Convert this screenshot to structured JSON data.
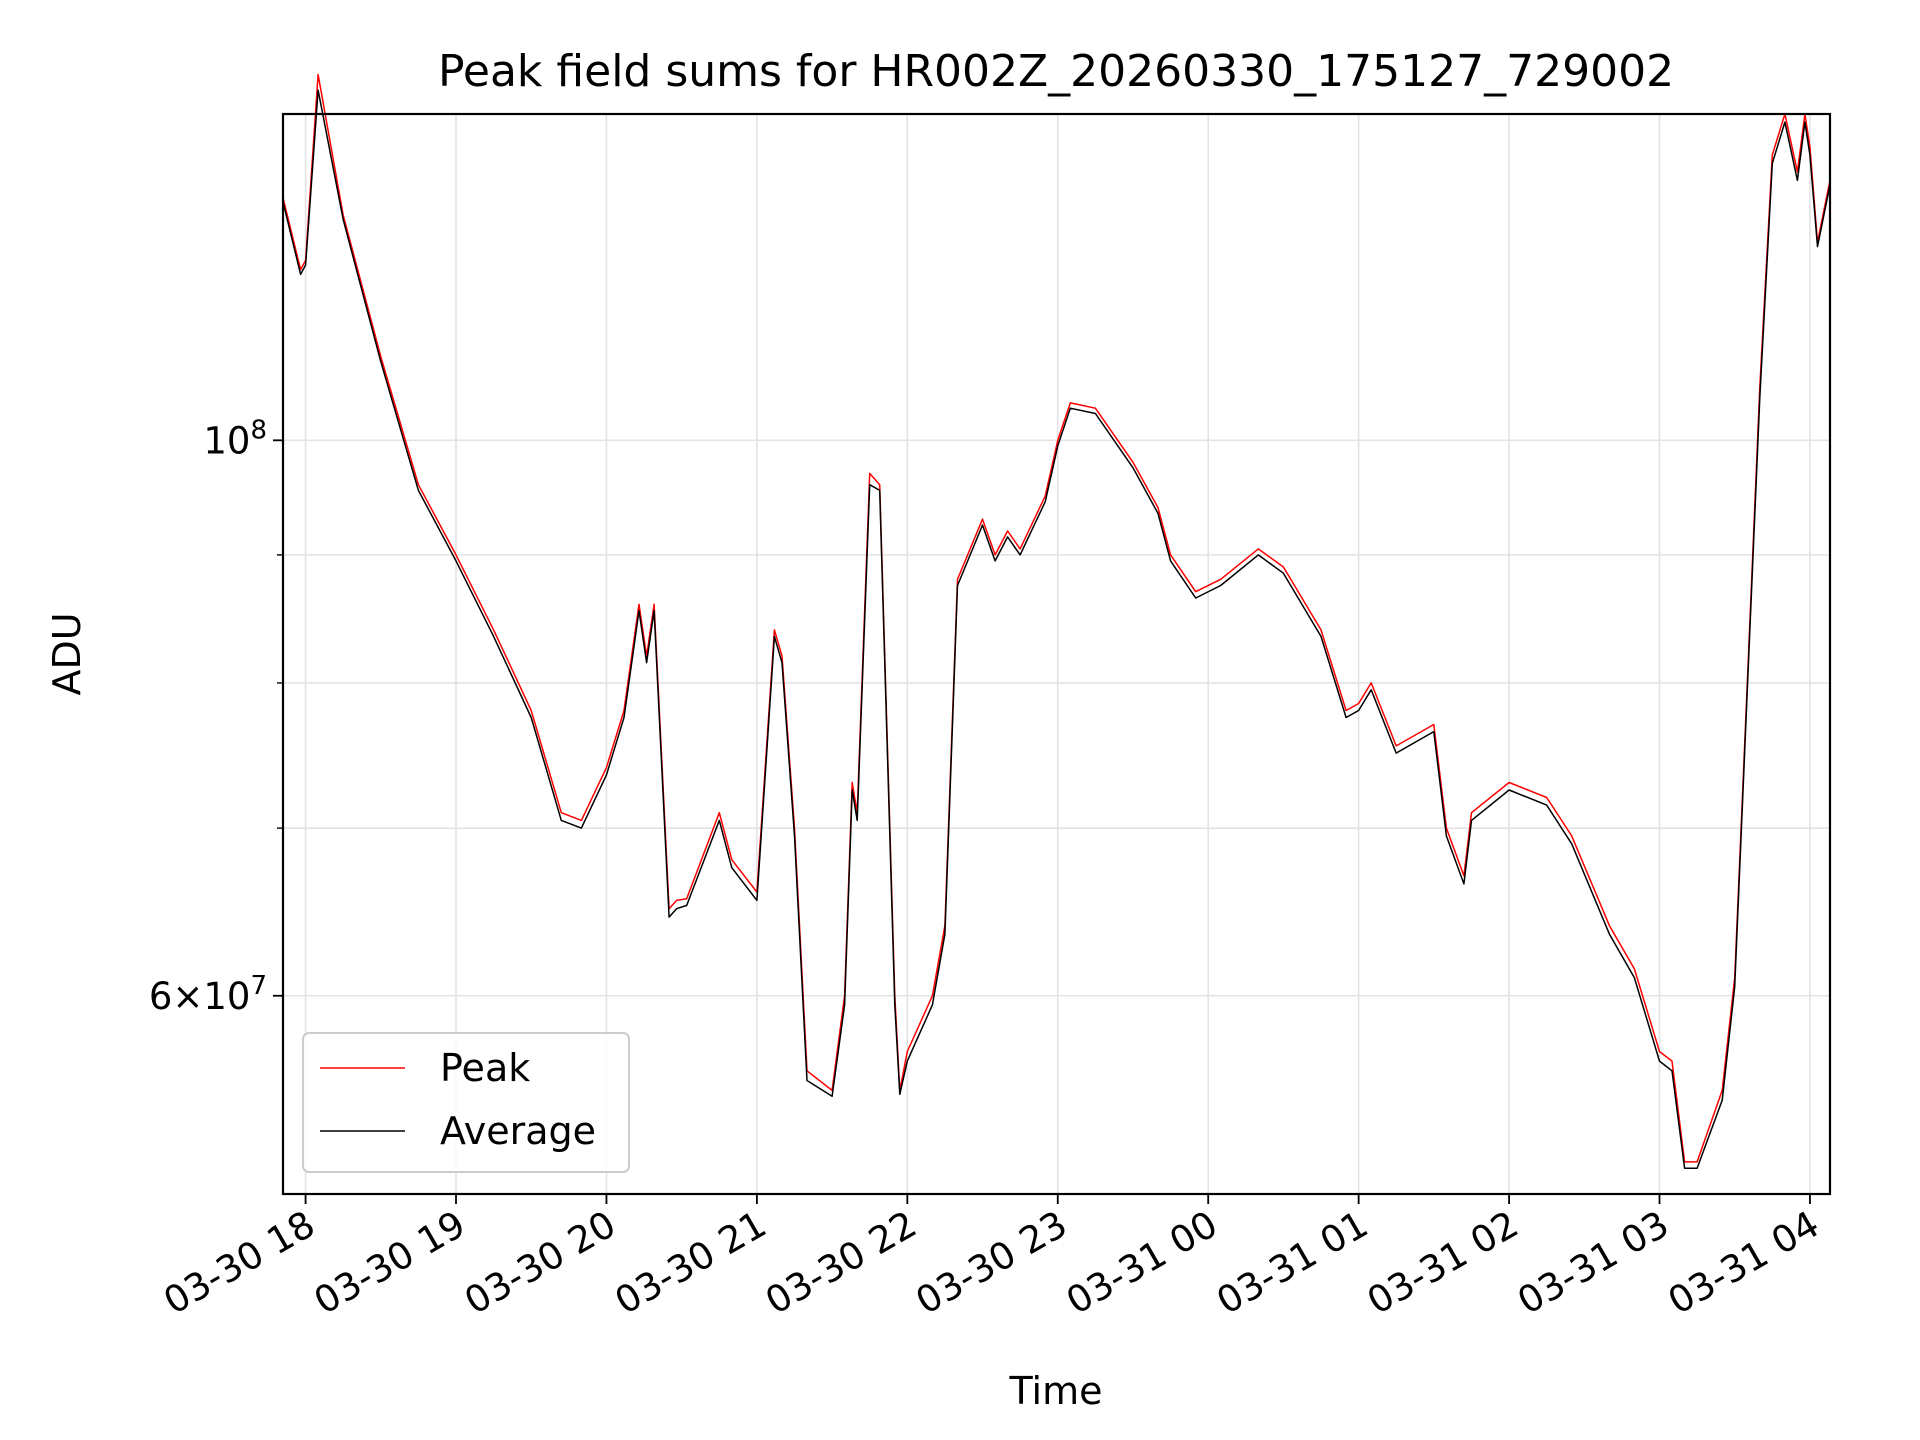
{
  "chart_data": {
    "type": "line",
    "title": "Peak field sums for HR002Z_20260330_175127_729002",
    "xlabel": "Time",
    "ylabel": "ADU",
    "yscale": "log",
    "xlim": [
      "2026-03-30 17:51",
      "2026-03-31 04:08"
    ],
    "ylim": [
      50000000,
      135000000
    ],
    "grid": true,
    "legend_placement": "lower-left",
    "x_tick_labels": [
      "03-30 18",
      "03-30 19",
      "03-30 20",
      "03-30 21",
      "03-30 22",
      "03-30 23",
      "03-31 00",
      "03-31 01",
      "03-31 02",
      "03-31 03",
      "03-31 04"
    ],
    "y_tick_labels": [
      {
        "value": 100000000,
        "base": "10",
        "exponent": "8"
      },
      {
        "value": 60000000,
        "mantissa": "6",
        "times": "×",
        "base": "10",
        "exponent": "7"
      }
    ],
    "series": [
      {
        "name": "Peak",
        "color": "#ff0000",
        "x": [
          "2026-03-30 17:51",
          "2026-03-30 17:58",
          "2026-03-30 18:00",
          "2026-03-30 18:05",
          "2026-03-30 18:15",
          "2026-03-30 18:30",
          "2026-03-30 18:45",
          "2026-03-30 19:00",
          "2026-03-30 19:15",
          "2026-03-30 19:30",
          "2026-03-30 19:42",
          "2026-03-30 19:50",
          "2026-03-30 20:00",
          "2026-03-30 20:07",
          "2026-03-30 20:13",
          "2026-03-30 20:16",
          "2026-03-30 20:19",
          "2026-03-30 20:25",
          "2026-03-30 20:28",
          "2026-03-30 20:32",
          "2026-03-30 20:45",
          "2026-03-30 20:50",
          "2026-03-30 21:00",
          "2026-03-30 21:07",
          "2026-03-30 21:10",
          "2026-03-30 21:15",
          "2026-03-30 21:20",
          "2026-03-30 21:30",
          "2026-03-30 21:35",
          "2026-03-30 21:38",
          "2026-03-30 21:40",
          "2026-03-30 21:45",
          "2026-03-30 21:49",
          "2026-03-30 21:55",
          "2026-03-30 21:57",
          "2026-03-30 22:00",
          "2026-03-30 22:10",
          "2026-03-30 22:15",
          "2026-03-30 22:20",
          "2026-03-30 22:30",
          "2026-03-30 22:35",
          "2026-03-30 22:40",
          "2026-03-30 22:45",
          "2026-03-30 22:55",
          "2026-03-30 23:00",
          "2026-03-30 23:05",
          "2026-03-30 23:15",
          "2026-03-30 23:30",
          "2026-03-30 23:40",
          "2026-03-30 23:45",
          "2026-03-30 23:55",
          "2026-03-31 00:05",
          "2026-03-31 00:20",
          "2026-03-31 00:30",
          "2026-03-31 00:45",
          "2026-03-31 00:55",
          "2026-03-31 01:00",
          "2026-03-31 01:05",
          "2026-03-31 01:15",
          "2026-03-31 01:30",
          "2026-03-31 01:35",
          "2026-03-31 01:42",
          "2026-03-31 01:45",
          "2026-03-31 02:00",
          "2026-03-31 02:15",
          "2026-03-31 02:25",
          "2026-03-31 02:40",
          "2026-03-31 02:50",
          "2026-03-31 03:00",
          "2026-03-31 03:05",
          "2026-03-31 03:10",
          "2026-03-31 03:15",
          "2026-03-31 03:25",
          "2026-03-31 03:30",
          "2026-03-31 03:35",
          "2026-03-31 03:40",
          "2026-03-31 03:45",
          "2026-03-31 03:50",
          "2026-03-31 03:55",
          "2026-03-31 03:58",
          "2026-03-31 04:00",
          "2026-03-31 04:03",
          "2026-03-31 04:08"
        ],
        "y": [
          125000000,
          117000000,
          118000000,
          140000000,
          123000000,
          108000000,
          96000000,
          90000000,
          84000000,
          78000000,
          71000000,
          70500000,
          74000000,
          78000000,
          86000000,
          82000000,
          86000000,
          65000000,
          65500000,
          65600000,
          71000000,
          68000000,
          66000000,
          84000000,
          82000000,
          70000000,
          56000000,
          55000000,
          60000000,
          73000000,
          71000000,
          97000000,
          96000000,
          60000000,
          55000000,
          57000000,
          60000000,
          64000000,
          88000000,
          93000000,
          90000000,
          92000000,
          90500000,
          95000000,
          100000000,
          103500000,
          103000000,
          98000000,
          94000000,
          90000000,
          87000000,
          88000000,
          90500000,
          89000000,
          84000000,
          78000000,
          78500000,
          80000000,
          75500000,
          77000000,
          70000000,
          67000000,
          71000000,
          73000000,
          72000000,
          69500000,
          64000000,
          61500000,
          57000000,
          56500000,
          51500000,
          51500000,
          55000000,
          61000000,
          80000000,
          105000000,
          130000000,
          135000000,
          128000000,
          135000000,
          131000000,
          120000000,
          127000000
        ]
      },
      {
        "name": "Average",
        "color": "#000000",
        "x": [
          "2026-03-30 17:51",
          "2026-03-30 17:58",
          "2026-03-30 18:00",
          "2026-03-30 18:05",
          "2026-03-30 18:15",
          "2026-03-30 18:30",
          "2026-03-30 18:45",
          "2026-03-30 19:00",
          "2026-03-30 19:15",
          "2026-03-30 19:30",
          "2026-03-30 19:42",
          "2026-03-30 19:50",
          "2026-03-30 20:00",
          "2026-03-30 20:07",
          "2026-03-30 20:13",
          "2026-03-30 20:16",
          "2026-03-30 20:19",
          "2026-03-30 20:25",
          "2026-03-30 20:28",
          "2026-03-30 20:32",
          "2026-03-30 20:45",
          "2026-03-30 20:50",
          "2026-03-30 21:00",
          "2026-03-30 21:07",
          "2026-03-30 21:10",
          "2026-03-30 21:15",
          "2026-03-30 21:20",
          "2026-03-30 21:30",
          "2026-03-30 21:35",
          "2026-03-30 21:38",
          "2026-03-30 21:40",
          "2026-03-30 21:45",
          "2026-03-30 21:49",
          "2026-03-30 21:55",
          "2026-03-30 21:57",
          "2026-03-30 22:00",
          "2026-03-30 22:10",
          "2026-03-30 22:15",
          "2026-03-30 22:20",
          "2026-03-30 22:30",
          "2026-03-30 22:35",
          "2026-03-30 22:40",
          "2026-03-30 22:45",
          "2026-03-30 22:55",
          "2026-03-30 23:00",
          "2026-03-30 23:05",
          "2026-03-30 23:15",
          "2026-03-30 23:30",
          "2026-03-30 23:40",
          "2026-03-30 23:45",
          "2026-03-30 23:55",
          "2026-03-31 00:05",
          "2026-03-31 00:20",
          "2026-03-31 00:30",
          "2026-03-31 00:45",
          "2026-03-31 00:55",
          "2026-03-31 01:00",
          "2026-03-31 01:05",
          "2026-03-31 01:15",
          "2026-03-31 01:30",
          "2026-03-31 01:35",
          "2026-03-31 01:42",
          "2026-03-31 01:45",
          "2026-03-31 02:00",
          "2026-03-31 02:15",
          "2026-03-31 02:25",
          "2026-03-31 02:40",
          "2026-03-31 02:50",
          "2026-03-31 03:00",
          "2026-03-31 03:05",
          "2026-03-31 03:10",
          "2026-03-31 03:15",
          "2026-03-31 03:25",
          "2026-03-31 03:30",
          "2026-03-31 03:35",
          "2026-03-31 03:40",
          "2026-03-31 03:45",
          "2026-03-31 03:50",
          "2026-03-31 03:55",
          "2026-03-31 03:58",
          "2026-03-31 04:00",
          "2026-03-31 04:03",
          "2026-03-31 04:08"
        ],
        "y": [
          124500000,
          116500000,
          117500000,
          138000000,
          122500000,
          107500000,
          95500000,
          89500000,
          83500000,
          77500000,
          70500000,
          70000000,
          73500000,
          77500000,
          85500000,
          81500000,
          85500000,
          64500000,
          65000000,
          65200000,
          70500000,
          67500000,
          65500000,
          83500000,
          81500000,
          69500000,
          55500000,
          54700000,
          59500000,
          72500000,
          70500000,
          96000000,
          95500000,
          59500000,
          54800000,
          56500000,
          59500000,
          63500000,
          87500000,
          92500000,
          89500000,
          91500000,
          90000000,
          94500000,
          99500000,
          103000000,
          102500000,
          97500000,
          93500000,
          89500000,
          86500000,
          87500000,
          90000000,
          88500000,
          83500000,
          77500000,
          78000000,
          79500000,
          75000000,
          76500000,
          69500000,
          66500000,
          70500000,
          72500000,
          71500000,
          69000000,
          63500000,
          61000000,
          56500000,
          56000000,
          51200000,
          51200000,
          54500000,
          60500000,
          79500000,
          104000000,
          129000000,
          134000000,
          127000000,
          134000000,
          130000000,
          119500000,
          126500000
        ]
      }
    ]
  }
}
